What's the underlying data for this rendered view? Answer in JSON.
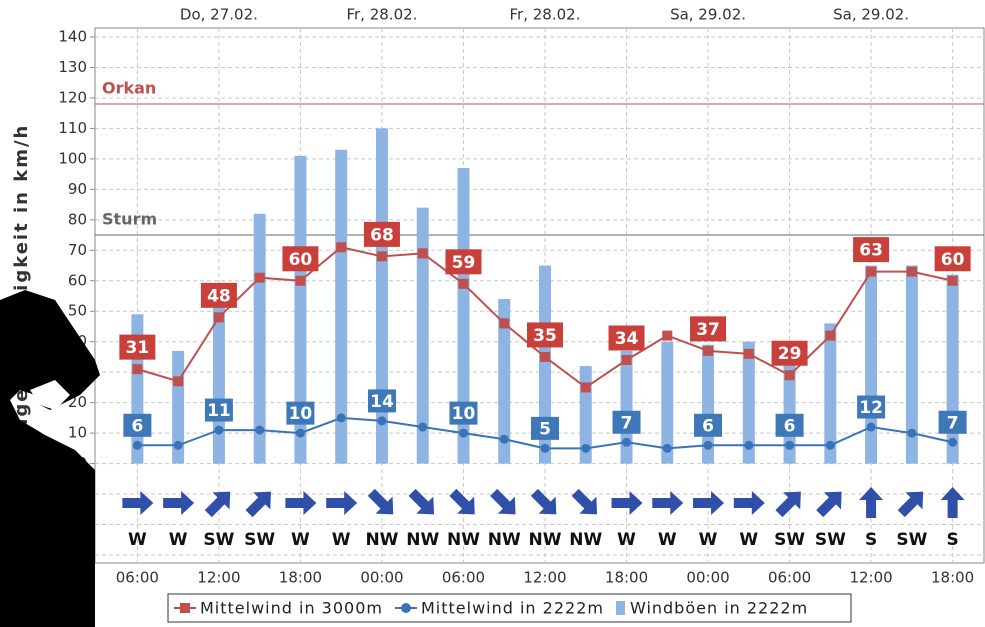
{
  "chart_data": {
    "type": "wind",
    "y_label": "Windgeschwindigkeit in km/h",
    "categories": [
      "06:00",
      null,
      "12:00",
      null,
      "18:00",
      null,
      "00:00",
      null,
      "06:00",
      null,
      "12:00",
      null,
      "18:00",
      null,
      "00:00",
      null,
      "06:00",
      null,
      "12:00",
      null,
      "18:00"
    ],
    "top_categories": [
      null,
      null,
      "Do, 27.02.",
      null,
      null,
      null,
      "Fr, 28.02.",
      null,
      null,
      null,
      "Fr, 28.02.",
      null,
      null,
      null,
      "Sa, 29.02.",
      null,
      null,
      null,
      "Sa, 29.02.",
      null,
      null
    ],
    "ylim": [
      -30,
      140
    ],
    "yticks": [
      -30,
      -20,
      -10,
      0,
      10,
      20,
      30,
      40,
      50,
      60,
      70,
      80,
      90,
      100,
      110,
      120,
      130,
      140
    ],
    "grid": true,
    "reference_lines": [
      {
        "label": "Orkan",
        "value": 118,
        "color": "#c0504d"
      },
      {
        "label": "Sturm",
        "value": 75,
        "color": "#666666"
      }
    ],
    "series": [
      {
        "name": "Windböen in 2222m",
        "kind": "bar",
        "color": "#8db4e2",
        "values": [
          49,
          37,
          52,
          82,
          101,
          103,
          110,
          84,
          97,
          54,
          65,
          32,
          37,
          40,
          39,
          40,
          34,
          46,
          65,
          65,
          62
        ]
      },
      {
        "name": "Mittelwind in 3000m",
        "kind": "line",
        "marker": "square",
        "color": "#c0504d",
        "label_color": "#c9403a",
        "values": [
          31,
          27,
          48,
          61,
          60,
          71,
          68,
          69,
          59,
          46,
          35,
          25,
          34,
          42,
          37,
          36,
          29,
          42,
          63,
          63,
          60
        ],
        "labels": [
          "31",
          null,
          "48",
          null,
          "60",
          null,
          "68",
          null,
          "59",
          null,
          "35",
          null,
          "34",
          null,
          "37",
          null,
          "29",
          null,
          "63",
          null,
          "60"
        ]
      },
      {
        "name": "Mittelwind in 2222m",
        "kind": "line",
        "marker": "circle",
        "color": "#3b73b9",
        "label_color": "#3e78b8",
        "values": [
          6,
          6,
          11,
          11,
          10,
          15,
          14,
          12,
          10,
          8,
          5,
          5,
          7,
          5,
          6,
          6,
          6,
          6,
          12,
          10,
          7
        ],
        "labels": [
          "6",
          null,
          "11",
          null,
          "10",
          null,
          "14",
          null,
          "10",
          null,
          "5",
          null,
          "7",
          null,
          "6",
          null,
          "6",
          null,
          "12",
          null,
          "7"
        ]
      }
    ],
    "legend_order": [
      1,
      2,
      0
    ],
    "arrow_color": "#2f4fa8",
    "directions": [
      "W",
      "W",
      "SW",
      "SW",
      "W",
      "W",
      "NW",
      "NW",
      "NW",
      "NW",
      "NW",
      "NW",
      "W",
      "W",
      "W",
      "W",
      "SW",
      "SW",
      "S",
      "SW",
      "S"
    ],
    "arrow_angles": [
      0,
      0,
      -45,
      -45,
      0,
      0,
      45,
      45,
      45,
      45,
      45,
      45,
      0,
      0,
      0,
      0,
      -45,
      -45,
      -90,
      -45,
      -90
    ]
  }
}
